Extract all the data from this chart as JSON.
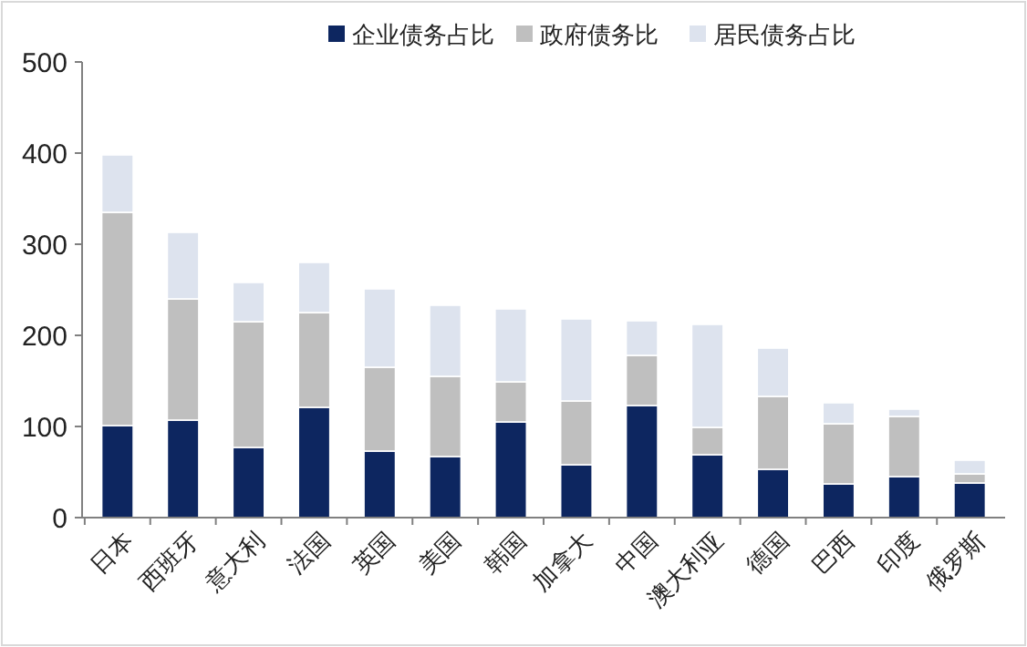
{
  "chart_data": {
    "type": "bar",
    "stacked": true,
    "legend": "top",
    "grid": false,
    "categories": [
      "日本",
      "西班牙",
      "意大利",
      "法国",
      "英国",
      "美国",
      "韩国",
      "加拿大",
      "中国",
      "澳大利亚",
      "德国",
      "巴西",
      "印度",
      "俄罗斯"
    ],
    "series": [
      {
        "name": "企业债务占比",
        "color": "#0d2660",
        "values": [
          101,
          107,
          77,
          121,
          73,
          67,
          105,
          58,
          123,
          69,
          53,
          37,
          45,
          38
        ]
      },
      {
        "name": "政府债务比",
        "color": "#bfbfbf",
        "values": [
          234,
          133,
          138,
          104,
          92,
          88,
          44,
          70,
          55,
          30,
          80,
          66,
          66,
          10
        ]
      },
      {
        "name": "居民债务占比",
        "color": "#dde3ee",
        "values": [
          63,
          73,
          43,
          55,
          86,
          78,
          80,
          90,
          38,
          113,
          53,
          23,
          8,
          15
        ]
      }
    ],
    "ylim": [
      0,
      500
    ],
    "yticks": [
      0,
      100,
      200,
      300,
      400,
      500
    ]
  }
}
